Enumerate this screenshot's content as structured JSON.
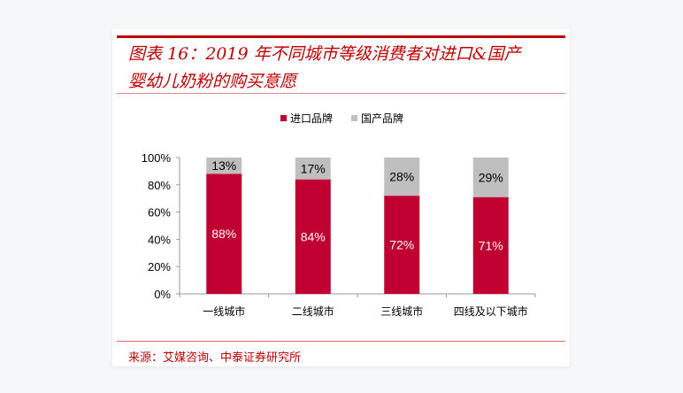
{
  "title_line1": "图表 16：2019 年不同城市等级消费者对进口&国产",
  "title_line2": "婴幼儿奶粉的购买意愿",
  "source": "来源：艾媒咨询、中泰证券研究所",
  "chart_data": {
    "type": "bar",
    "stacked": true,
    "percent": true,
    "categories": [
      "一线城市",
      "二线城市",
      "三线城市",
      "四线及以下城市"
    ],
    "series": [
      {
        "name": "进口品牌",
        "values": [
          88,
          84,
          72,
          71
        ],
        "color": "#c00030"
      },
      {
        "name": "国产品牌",
        "values": [
          13,
          17,
          28,
          29
        ],
        "color": "#bfbfbf"
      }
    ],
    "ylim": [
      0,
      100
    ],
    "yticks": [
      "0%",
      "20%",
      "40%",
      "60%",
      "80%",
      "100%"
    ],
    "legend": "top",
    "grid": false
  }
}
